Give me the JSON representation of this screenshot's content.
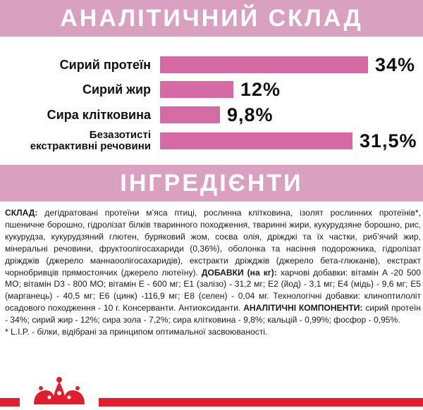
{
  "analysis": {
    "title": "АНАЛІТИЧНИЙ СКЛАД",
    "rows": [
      {
        "label_lines": [
          "Сирий протеїн"
        ],
        "value_text": "34%",
        "value": 34
      },
      {
        "label_lines": [
          "Сирий жир"
        ],
        "value_text": "12%",
        "value": 12
      },
      {
        "label_lines": [
          "Сира клітковина"
        ],
        "value_text": "9,8%",
        "value": 9.8
      },
      {
        "label_lines": [
          "Безазотисті",
          "екстрактивні речовини"
        ],
        "value_text": "31,5%",
        "value": 31.5
      }
    ],
    "bar_color": "#d66aa5"
  },
  "ingredients": {
    "title": "ІНГРЕДІЄНТИ",
    "composition_label": "СКЛАД:",
    "composition_text": " дегідратовані протеїни м’яса птиці, рослинна клітковина, ізолят рослинних протеїнів*, пшеничне борошно, гідролізат білків тваринного походження, тваринні жири, кукурудзяне борошно, рис, кукурудза, кукурудзяний глютен, буряковий жом, соєва олія, дріжджі та їх частки, риб’ячий жир, мінеральні речовини, фруктоолігосахариди (0,36%), оболонка та насіння подорожника, гідролізат дріжджів (джерело маннаоолігосахаридів), екстракти дріжджів (джерело бета-глюканів), екстракт чорнобривців прямостоячих (джерело лютеїну). ",
    "additives_label": "ДОБАВКИ (на кг):",
    "additives_text": " харчові добавки: вітамін A -20 500 МО; вітамін D3 - 800 МО; вітамін E - 600 мг; E1 (залізо) - 31,2 мг; E2 (йод) - 3,1 мг; E4 (мідь) - 9,6 мг; E5 (марганець) - 40,5 мг; E6 (цинк) -116,9 мг; E8 (селен) - 0,04 мг. Технологічні добавки: клинoптилоліт осадового походження - 10 г. Консерванти. Антиоксиданти. ",
    "analytical_label": "АНАЛІТИЧНІ КОМПОНЕНТИ:",
    "analytical_text": " сирий протеїн - 34%; сирий жир - 12%; сира зола - 7,2%; сира клітковина - 9,8%; кальцій - 0,99%; фосфор - 0,95%.",
    "footnote": "* L.I.P. - білки, відібрані за принципом оптимальної засвоюваності."
  },
  "colors": {
    "banner": "#d9a0c0",
    "bar": "#d66aa5",
    "footer_line": "#e01e2e"
  },
  "brand": {
    "logo_icon": "crown-icon"
  }
}
